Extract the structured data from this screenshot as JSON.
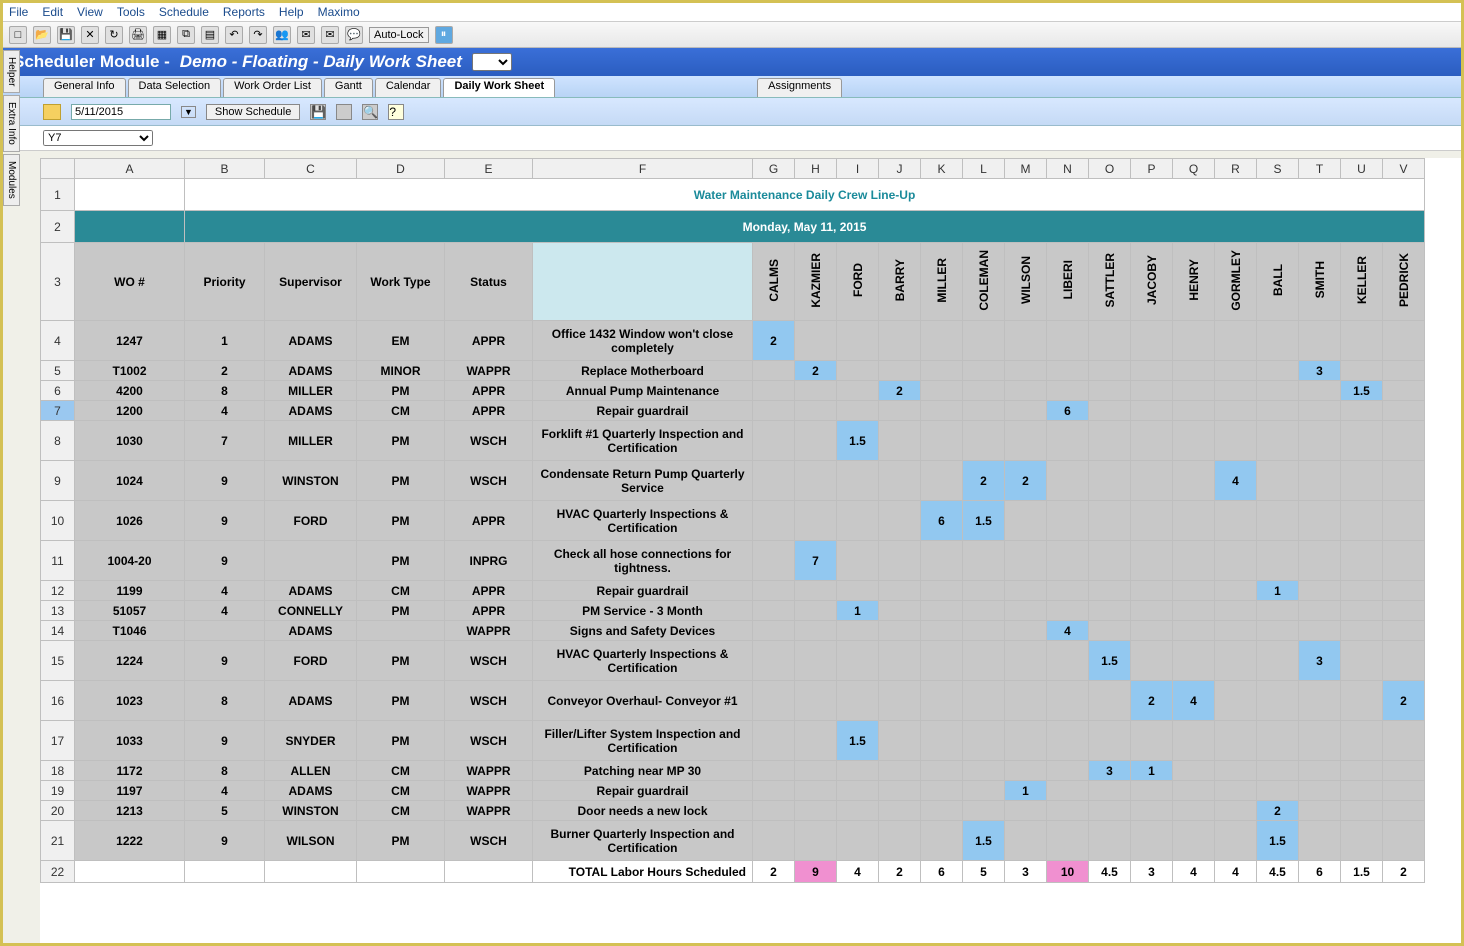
{
  "menu": {
    "items": [
      "File",
      "Edit",
      "View",
      "Tools",
      "Schedule",
      "Reports",
      "Help",
      "Maximo"
    ]
  },
  "autolock": "Auto-Lock",
  "module": {
    "prefix": "Scheduler Module -",
    "doc": "Demo - Floating - Daily Work Sheet"
  },
  "tabs": {
    "items": [
      "General Info",
      "Data Selection",
      "Work Order List",
      "Gantt",
      "Calendar",
      "Daily Work Sheet"
    ],
    "active": 5,
    "right": "Assignments"
  },
  "sub": {
    "date": "5/11/2015",
    "show": "Show Schedule"
  },
  "sidetabs": [
    "Helper",
    "Extra Info",
    "Modules"
  ],
  "cellref": "Y7",
  "colLetters": [
    "A",
    "B",
    "C",
    "D",
    "E",
    "F",
    "G",
    "H",
    "I",
    "J",
    "K",
    "L",
    "M",
    "N",
    "O",
    "P",
    "Q",
    "R",
    "S",
    "T",
    "U",
    "V"
  ],
  "titleText": "Water Maintenance Daily Crew Line-Up",
  "dateText": "Monday, May 11, 2015",
  "headers": {
    "wo": "WO #",
    "priority": "Priority",
    "supervisor": "Supervisor",
    "worktype": "Work Type",
    "status": "Status",
    "crew": [
      "CALMS",
      "KAZMIER",
      "FORD",
      "BARRY",
      "MILLER",
      "COLEMAN",
      "WILSON",
      "LIBERI",
      "SATTLER",
      "JACOBY",
      "HENRY",
      "GORMLEY",
      "BALL",
      "SMITH",
      "KELLER",
      "PEDRICK"
    ]
  },
  "rows": [
    {
      "n": 4,
      "tall": true,
      "wo": "1247",
      "pr": "1",
      "sup": "ADAMS",
      "wt": "EM",
      "st": "APPR",
      "desc": "Office 1432 Window won't close completely",
      "c": {
        "0": "2"
      }
    },
    {
      "n": 5,
      "wo": "T1002",
      "pr": "2",
      "sup": "ADAMS",
      "wt": "MINOR",
      "st": "WAPPR",
      "desc": "Replace Motherboard",
      "c": {
        "1": "2",
        "13": "3"
      }
    },
    {
      "n": 6,
      "wo": "4200",
      "pr": "8",
      "sup": "MILLER",
      "wt": "PM",
      "st": "APPR",
      "desc": "Annual Pump Maintenance",
      "c": {
        "3": "2",
        "14": "1.5"
      }
    },
    {
      "n": 7,
      "sel": true,
      "wo": "1200",
      "pr": "4",
      "sup": "ADAMS",
      "wt": "CM",
      "st": "APPR",
      "desc": "Repair guardrail",
      "c": {
        "7": "6"
      }
    },
    {
      "n": 8,
      "tall": true,
      "wo": "1030",
      "pr": "7",
      "sup": "MILLER",
      "wt": "PM",
      "st": "WSCH",
      "desc": "Forklift #1 Quarterly Inspection and Certification",
      "c": {
        "2": "1.5"
      }
    },
    {
      "n": 9,
      "tall": true,
      "wo": "1024",
      "pr": "9",
      "sup": "WINSTON",
      "wt": "PM",
      "st": "WSCH",
      "desc": "Condensate Return Pump Quarterly Service",
      "c": {
        "5": "2",
        "6": "2",
        "11": "4"
      }
    },
    {
      "n": 10,
      "tall": true,
      "wo": "1026",
      "pr": "9",
      "sup": "FORD",
      "wt": "PM",
      "st": "APPR",
      "desc": "HVAC Quarterly Inspections & Certification",
      "c": {
        "4": "6",
        "5": "1.5"
      }
    },
    {
      "n": 11,
      "tall": true,
      "wo": "1004-20",
      "pr": "9",
      "sup": "",
      "wt": "PM",
      "st": "INPRG",
      "desc": "Check all hose connections for tightness.",
      "c": {
        "1": "7"
      }
    },
    {
      "n": 12,
      "wo": "1199",
      "pr": "4",
      "sup": "ADAMS",
      "wt": "CM",
      "st": "APPR",
      "desc": "Repair guardrail",
      "c": {
        "12": "1"
      }
    },
    {
      "n": 13,
      "wo": "51057",
      "pr": "4",
      "sup": "CONNELLY",
      "wt": "PM",
      "st": "APPR",
      "desc": "PM Service - 3 Month",
      "c": {
        "2": "1"
      }
    },
    {
      "n": 14,
      "wo": "T1046",
      "pr": "",
      "sup": "ADAMS",
      "wt": "",
      "st": "WAPPR",
      "desc": "Signs and Safety Devices",
      "c": {
        "7": "4"
      }
    },
    {
      "n": 15,
      "tall": true,
      "wo": "1224",
      "pr": "9",
      "sup": "FORD",
      "wt": "PM",
      "st": "WSCH",
      "desc": "HVAC Quarterly Inspections & Certification",
      "c": {
        "8": "1.5",
        "13": "3"
      }
    },
    {
      "n": 16,
      "tall": true,
      "wo": "1023",
      "pr": "8",
      "sup": "ADAMS",
      "wt": "PM",
      "st": "WSCH",
      "desc": "Conveyor Overhaul- Conveyor #1",
      "c": {
        "9": "2",
        "10": "4",
        "15": "2"
      }
    },
    {
      "n": 17,
      "tall": true,
      "wo": "1033",
      "pr": "9",
      "sup": "SNYDER",
      "wt": "PM",
      "st": "WSCH",
      "desc": "Filler/Lifter System Inspection and Certification",
      "c": {
        "2": "1.5"
      }
    },
    {
      "n": 18,
      "wo": "1172",
      "pr": "8",
      "sup": "ALLEN",
      "wt": "CM",
      "st": "WAPPR",
      "desc": "Patching near MP 30",
      "c": {
        "8": "3",
        "9": "1"
      }
    },
    {
      "n": 19,
      "wo": "1197",
      "pr": "4",
      "sup": "ADAMS",
      "wt": "CM",
      "st": "WAPPR",
      "desc": "Repair guardrail",
      "c": {
        "6": "1"
      }
    },
    {
      "n": 20,
      "wo": "1213",
      "pr": "5",
      "sup": "WINSTON",
      "wt": "CM",
      "st": "WAPPR",
      "desc": "Door needs a new lock",
      "c": {
        "12": "2"
      }
    },
    {
      "n": 21,
      "tall": true,
      "wo": "1222",
      "pr": "9",
      "sup": "WILSON",
      "wt": "PM",
      "st": "WSCH",
      "desc": "Burner Quarterly Inspection and Certification",
      "c": {
        "5": "1.5",
        "12": "1.5"
      }
    }
  ],
  "totals": {
    "n": 22,
    "label": "TOTAL Labor Hours Scheduled",
    "vals": [
      "2",
      "9",
      "4",
      "2",
      "6",
      "5",
      "3",
      "10",
      "4.5",
      "3",
      "4",
      "4",
      "4.5",
      "6",
      "1.5",
      "2"
    ],
    "pink": [
      1,
      7
    ]
  }
}
